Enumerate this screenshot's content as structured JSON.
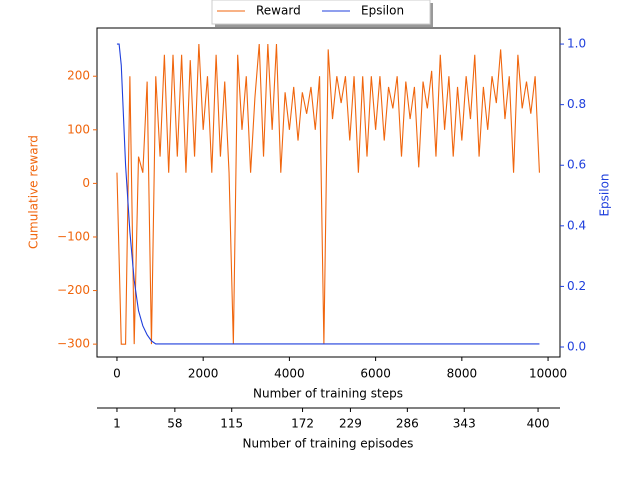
{
  "chart_data": {
    "type": "line",
    "xlabel": "Number of training steps",
    "ylabel": "Cumulative reward",
    "y2label": "Epsilon",
    "x2label": "Number of training episodes",
    "xlim": [
      -463,
      10277
    ],
    "xticks": [
      0,
      2000,
      4000,
      6000,
      8000,
      10000
    ],
    "ylim": [
      -324,
      290
    ],
    "yticks": [
      {
        "value": -300,
        "label": "−300"
      },
      {
        "value": -200,
        "label": "−200"
      },
      {
        "value": -100,
        "label": "−100"
      },
      0,
      100,
      200
    ],
    "y2lim": [
      -0.033,
      1.053
    ],
    "y2ticks": [
      {
        "value": 0,
        "label": "0.0"
      },
      0.2,
      0.4,
      0.6,
      0.8,
      {
        "value": 1,
        "label": "1.0"
      }
    ],
    "x2ticks": [
      1,
      58,
      115,
      172,
      229,
      286,
      343,
      400
    ],
    "x2tick_steps": [
      0,
      1343,
      2662,
      4305,
      5416,
      6736,
      8056,
      9768
    ],
    "legend": "upper center",
    "series": [
      {
        "name": "Reward",
        "color": "#f0660e",
        "axis": "y",
        "x": [
          0,
          100,
          200,
          300,
          400,
          500,
          600,
          700,
          800,
          900,
          1000,
          1100,
          1200,
          1300,
          1400,
          1500,
          1600,
          1700,
          1800,
          1900,
          2000,
          2100,
          2200,
          2300,
          2400,
          2500,
          2600,
          2700,
          2800,
          2900,
          3000,
          3100,
          3200,
          3300,
          3400,
          3500,
          3600,
          3700,
          3800,
          3900,
          4000,
          4100,
          4200,
          4300,
          4400,
          4500,
          4600,
          4700,
          4800,
          4900,
          5000,
          5100,
          5200,
          5300,
          5400,
          5500,
          5600,
          5700,
          5800,
          5900,
          6000,
          6100,
          6200,
          6300,
          6400,
          6500,
          6600,
          6700,
          6800,
          6900,
          7000,
          7100,
          7200,
          7300,
          7400,
          7500,
          7600,
          7700,
          7800,
          7900,
          8000,
          8100,
          8200,
          8300,
          8400,
          8500,
          8600,
          8700,
          8800,
          8900,
          9000,
          9100,
          9200,
          9300,
          9400,
          9500,
          9600,
          9700,
          9800
        ],
        "values": [
          20,
          -300,
          -300,
          200,
          -300,
          50,
          20,
          190,
          -300,
          200,
          50,
          240,
          20,
          240,
          50,
          240,
          20,
          230,
          50,
          260,
          100,
          200,
          20,
          240,
          50,
          190,
          20,
          -300,
          240,
          100,
          200,
          20,
          160,
          260,
          50,
          260,
          100,
          260,
          20,
          170,
          100,
          180,
          80,
          170,
          130,
          180,
          100,
          200,
          -300,
          250,
          120,
          200,
          150,
          200,
          80,
          200,
          20,
          200,
          50,
          200,
          100,
          200,
          80,
          180,
          140,
          200,
          50,
          190,
          120,
          180,
          30,
          190,
          140,
          210,
          50,
          240,
          100,
          200,
          50,
          180,
          80,
          200,
          120,
          240,
          50,
          180,
          100,
          200,
          150,
          250,
          120,
          200,
          20,
          240,
          140,
          190,
          130,
          200,
          20
        ]
      },
      {
        "name": "Epsilon",
        "color": "#1f3fdc",
        "axis": "y2",
        "x": [
          0,
          50,
          100,
          200,
          300,
          400,
          500,
          600,
          700,
          800,
          900,
          1000,
          9800
        ],
        "values": [
          1.0,
          1.0,
          0.93,
          0.6,
          0.38,
          0.22,
          0.12,
          0.07,
          0.04,
          0.02,
          0.01,
          0.01,
          0.01
        ]
      }
    ]
  }
}
